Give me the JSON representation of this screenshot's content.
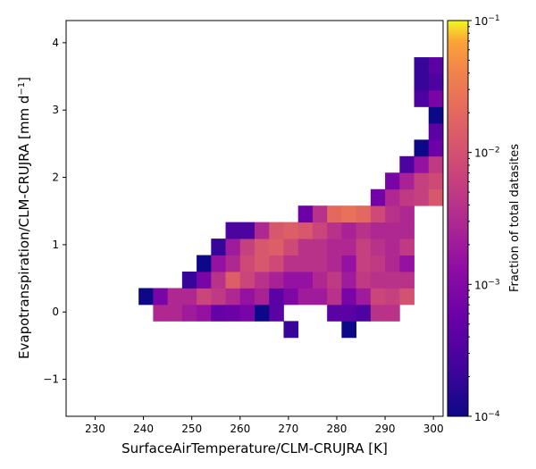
{
  "chart_data": {
    "type": "heatmap",
    "xlabel": "SurfaceAirTemperature/CLM-CRUJRA [K]",
    "ylabel_parts": [
      "Evapotranspiration/CLM-CRUJRA [mm d",
      "−1",
      "]"
    ],
    "colorbar_label": "Fraction of total datasites",
    "colorscale": "plasma",
    "color_scale_type": "log",
    "xlim": [
      224.0,
      302.0
    ],
    "ylim": [
      -1.55,
      4.33
    ],
    "x_ticks": [
      230,
      240,
      250,
      260,
      270,
      280,
      290,
      300
    ],
    "y_ticks": [
      -1,
      0,
      1,
      2,
      3,
      4
    ],
    "clim": [
      0.0001,
      0.1
    ],
    "colorbar_ticks": [
      {
        "value": 0.1,
        "base": "10",
        "exp": "−1"
      },
      {
        "value": 0.01,
        "base": "10",
        "exp": "−2"
      },
      {
        "value": 0.001,
        "base": "10",
        "exp": "−3"
      },
      {
        "value": 0.0001,
        "base": "10",
        "exp": "−4"
      }
    ],
    "bin_width_x": 3.0,
    "bin_width_y": 0.245,
    "x_bin_start": 224.0,
    "y_bin_start": -0.38,
    "cells": [
      [
        19,
        0,
        0.0001
      ],
      [
        6,
        1,
        0.003
      ],
      [
        7,
        1,
        0.003
      ],
      [
        8,
        1,
        0.002
      ],
      [
        9,
        1,
        0.0015
      ],
      [
        10,
        1,
        0.0005
      ],
      [
        11,
        1,
        0.0006
      ],
      [
        12,
        1,
        0.0008
      ],
      [
        13,
        1,
        0.0001
      ],
      [
        14,
        1,
        0.0004
      ],
      [
        18,
        1,
        0.0004
      ],
      [
        19,
        1,
        0.0004
      ],
      [
        20,
        1,
        0.0003
      ],
      [
        21,
        1,
        0.004
      ],
      [
        22,
        1,
        0.004
      ],
      [
        5,
        2,
        0.0001
      ],
      [
        6,
        2,
        0.0008
      ],
      [
        7,
        2,
        0.003
      ],
      [
        8,
        2,
        0.003
      ],
      [
        9,
        2,
        0.007
      ],
      [
        10,
        2,
        0.005
      ],
      [
        11,
        2,
        0.003
      ],
      [
        12,
        2,
        0.0015
      ],
      [
        13,
        2,
        0.0025
      ],
      [
        14,
        2,
        0.0004
      ],
      [
        15,
        2,
        0.0009
      ],
      [
        16,
        2,
        0.002
      ],
      [
        17,
        2,
        0.002
      ],
      [
        18,
        2,
        0.004
      ],
      [
        19,
        2,
        0.0008
      ],
      [
        20,
        2,
        0.002
      ],
      [
        21,
        2,
        0.007
      ],
      [
        22,
        2,
        0.006
      ],
      [
        23,
        2,
        0.01
      ],
      [
        8,
        3,
        0.0002
      ],
      [
        9,
        3,
        0.0008
      ],
      [
        10,
        3,
        0.004
      ],
      [
        11,
        3,
        0.015
      ],
      [
        12,
        3,
        0.007
      ],
      [
        13,
        3,
        0.004
      ],
      [
        14,
        3,
        0.0025
      ],
      [
        15,
        3,
        0.0015
      ],
      [
        16,
        3,
        0.0015
      ],
      [
        17,
        3,
        0.003
      ],
      [
        18,
        3,
        0.005
      ],
      [
        19,
        3,
        0.002
      ],
      [
        20,
        3,
        0.005
      ],
      [
        21,
        3,
        0.004
      ],
      [
        22,
        3,
        0.004
      ],
      [
        23,
        3,
        0.004
      ],
      [
        9,
        4,
        0.0001
      ],
      [
        10,
        4,
        0.0015
      ],
      [
        11,
        4,
        0.003
      ],
      [
        12,
        4,
        0.008
      ],
      [
        13,
        4,
        0.012
      ],
      [
        14,
        4,
        0.008
      ],
      [
        15,
        4,
        0.004
      ],
      [
        16,
        4,
        0.004
      ],
      [
        17,
        4,
        0.004
      ],
      [
        18,
        4,
        0.003
      ],
      [
        19,
        4,
        0.0015
      ],
      [
        20,
        4,
        0.006
      ],
      [
        21,
        4,
        0.005
      ],
      [
        22,
        4,
        0.003
      ],
      [
        23,
        4,
        0.0015
      ],
      [
        10,
        5,
        0.0002
      ],
      [
        11,
        5,
        0.002
      ],
      [
        12,
        5,
        0.006
      ],
      [
        13,
        5,
        0.012
      ],
      [
        14,
        5,
        0.015
      ],
      [
        15,
        5,
        0.008
      ],
      [
        16,
        5,
        0.004
      ],
      [
        17,
        5,
        0.004
      ],
      [
        18,
        5,
        0.003
      ],
      [
        19,
        5,
        0.003
      ],
      [
        20,
        5,
        0.006
      ],
      [
        21,
        5,
        0.004
      ],
      [
        22,
        5,
        0.003
      ],
      [
        23,
        5,
        0.005
      ],
      [
        11,
        6,
        0.0003
      ],
      [
        12,
        6,
        0.0003
      ],
      [
        13,
        6,
        0.003
      ],
      [
        14,
        6,
        0.012
      ],
      [
        15,
        6,
        0.015
      ],
      [
        16,
        6,
        0.012
      ],
      [
        17,
        6,
        0.007
      ],
      [
        18,
        6,
        0.004
      ],
      [
        19,
        6,
        0.0025
      ],
      [
        20,
        6,
        0.004
      ],
      [
        21,
        6,
        0.003
      ],
      [
        22,
        6,
        0.003
      ],
      [
        23,
        6,
        0.003
      ],
      [
        16,
        7,
        0.0006
      ],
      [
        17,
        7,
        0.004
      ],
      [
        18,
        7,
        0.02
      ],
      [
        19,
        7,
        0.025
      ],
      [
        20,
        7,
        0.02
      ],
      [
        21,
        7,
        0.008
      ],
      [
        22,
        7,
        0.004
      ],
      [
        23,
        7,
        0.003
      ],
      [
        21,
        8,
        0.0007
      ],
      [
        22,
        8,
        0.003
      ],
      [
        23,
        8,
        0.005
      ],
      [
        24,
        8,
        0.006
      ],
      [
        25,
        8,
        0.012
      ],
      [
        26,
        8,
        0.007
      ],
      [
        27,
        8,
        0.004
      ],
      [
        28,
        8,
        0.004
      ],
      [
        29,
        8,
        0.004
      ],
      [
        22,
        9,
        0.0008
      ],
      [
        23,
        9,
        0.0025
      ],
      [
        24,
        9,
        0.006
      ],
      [
        25,
        9,
        0.008
      ],
      [
        26,
        9,
        0.007
      ],
      [
        27,
        9,
        0.004
      ],
      [
        28,
        9,
        0.004
      ],
      [
        29,
        9,
        0.004
      ],
      [
        23,
        10,
        0.0003
      ],
      [
        24,
        10,
        0.0015
      ],
      [
        25,
        10,
        0.005
      ],
      [
        26,
        10,
        0.004
      ],
      [
        27,
        10,
        0.004
      ],
      [
        28,
        10,
        0.002
      ],
      [
        29,
        10,
        0.004
      ],
      [
        24,
        11,
        0.0001
      ],
      [
        25,
        11,
        0.0006
      ],
      [
        26,
        11,
        0.0025
      ],
      [
        27,
        11,
        0.005
      ],
      [
        28,
        11,
        0.002
      ],
      [
        29,
        11,
        0.005
      ],
      [
        25,
        12,
        0.0004
      ],
      [
        26,
        12,
        0.003
      ],
      [
        27,
        12,
        0.012
      ],
      [
        28,
        12,
        0.004
      ],
      [
        29,
        12,
        0.006
      ],
      [
        25,
        13,
        0.0001
      ],
      [
        26,
        13,
        0.0009
      ],
      [
        27,
        13,
        0.004
      ],
      [
        28,
        13,
        0.004
      ],
      [
        29,
        13,
        0.005
      ],
      [
        24,
        14,
        0.0003
      ],
      [
        25,
        14,
        0.0008
      ],
      [
        26,
        14,
        0.002
      ],
      [
        27,
        14,
        0.004
      ],
      [
        28,
        14,
        0.004
      ],
      [
        29,
        14,
        0.004
      ],
      [
        24,
        15,
        0.0002
      ],
      [
        25,
        15,
        0.0003
      ],
      [
        26,
        15,
        0.001
      ],
      [
        27,
        15,
        0.002
      ],
      [
        28,
        15,
        0.006
      ],
      [
        29,
        15,
        0.004
      ],
      [
        24,
        16,
        0.0002
      ],
      [
        25,
        16,
        0.0004
      ],
      [
        26,
        16,
        0.0012
      ],
      [
        27,
        16,
        0.003
      ],
      [
        28,
        16,
        0.012
      ],
      [
        29,
        16,
        0.008
      ],
      [
        26,
        17,
        0.0003
      ],
      [
        27,
        17,
        0.001
      ],
      [
        28,
        17,
        0.007
      ],
      [
        29,
        17,
        0.005
      ],
      [
        26,
        18,
        0.0001
      ],
      [
        27,
        18,
        0.0008
      ],
      [
        28,
        18,
        0.006
      ],
      [
        29,
        18,
        0.004
      ],
      [
        27,
        19,
        0.0001
      ],
      [
        28,
        19,
        0.0008
      ],
      [
        29,
        19,
        0.004
      ],
      [
        27,
        20,
        0.0001
      ],
      [
        28,
        20,
        0.0002
      ],
      [
        29,
        20,
        0.0012
      ],
      [
        27,
        21,
        0.0001
      ],
      [
        28,
        21,
        0.0002
      ],
      [
        29,
        21,
        0.0002
      ]
    ],
    "extra_cells": [
      [
        15,
        0,
        0.0002
      ]
    ]
  }
}
